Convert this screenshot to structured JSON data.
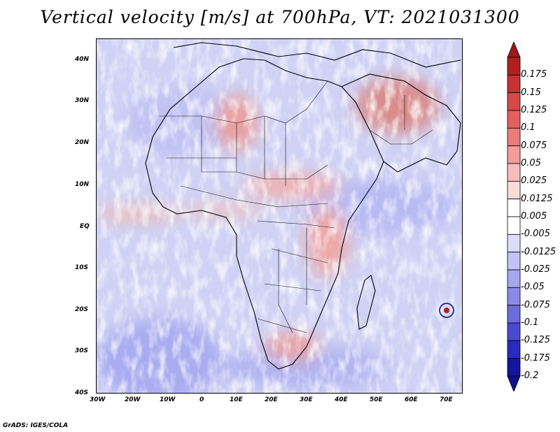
{
  "title": "Vertical velocity [m/s] at 700hPa, VT: 2021031300",
  "map": {
    "lat_labels": [
      "40N",
      "30N",
      "20N",
      "10N",
      "EQ",
      "10S",
      "20S",
      "30S",
      "40S"
    ],
    "lon_labels": [
      "30W",
      "20W",
      "10W",
      "0",
      "10E",
      "20E",
      "30E",
      "40E",
      "50E",
      "60E",
      "70E"
    ],
    "lat_range": [
      -40,
      45
    ],
    "lon_range": [
      -30,
      75
    ]
  },
  "colorbar": {
    "labels": [
      "0.175",
      "0.15",
      "0.125",
      "0.1",
      "0.075",
      "0.05",
      "0.025",
      "0.0125",
      "0.005",
      "-0.005",
      "-0.0125",
      "-0.025",
      "-0.05",
      "-0.075",
      "-0.1",
      "-0.125",
      "-0.175",
      "-0.2"
    ],
    "colors": [
      "#b02020",
      "#c53232",
      "#d94848",
      "#e46060",
      "#ec7c7c",
      "#f29c9c",
      "#f7bcbc",
      "#fbdada",
      "#ffffff",
      "#ffffff",
      "#dcdcfa",
      "#c2c2f4",
      "#a6a6ee",
      "#8a8ae6",
      "#6c6cdc",
      "#4a4ad0",
      "#2a2ac0",
      "#14149e"
    ],
    "top_arrow_color": "#a01818",
    "bottom_arrow_color": "#10108c"
  },
  "credit": "GrADS: IGES/COLA"
}
